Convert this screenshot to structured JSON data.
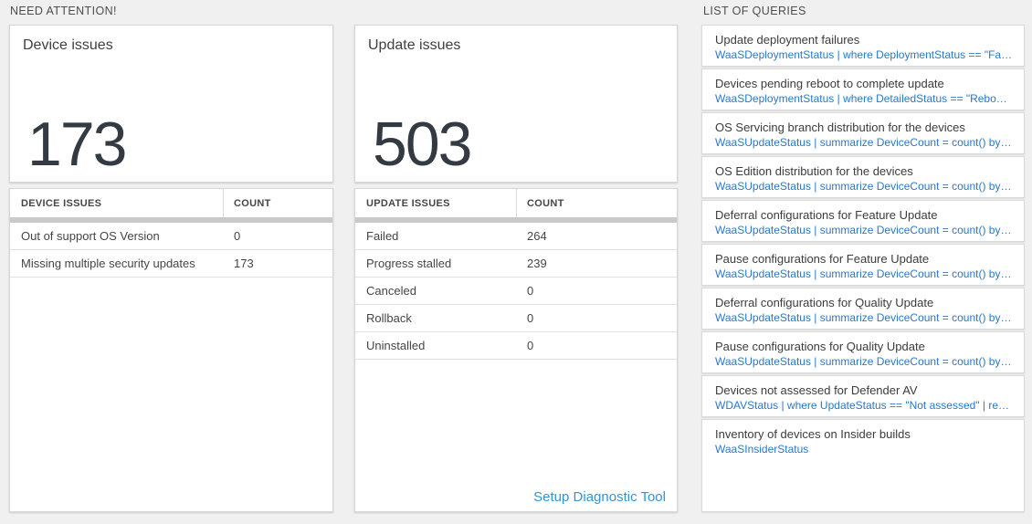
{
  "sections": {
    "need_attention": "NEED ATTENTION!",
    "list_of_queries": "LIST OF QUERIES"
  },
  "device_card": {
    "title": "Device issues",
    "count": "173",
    "table": {
      "headers": {
        "label": "DEVICE ISSUES",
        "count": "COUNT"
      },
      "rows": [
        {
          "label": "Out of support OS Version",
          "count": "0"
        },
        {
          "label": "Missing multiple security updates",
          "count": "173"
        }
      ]
    }
  },
  "update_card": {
    "title": "Update issues",
    "count": "503",
    "table": {
      "headers": {
        "label": "UPDATE ISSUES",
        "count": "COUNT"
      },
      "rows": [
        {
          "label": "Failed",
          "count": "264"
        },
        {
          "label": "Progress stalled",
          "count": "239"
        },
        {
          "label": "Canceled",
          "count": "0"
        },
        {
          "label": "Rollback",
          "count": "0"
        },
        {
          "label": "Uninstalled",
          "count": "0"
        }
      ]
    },
    "footer_link": "Setup Diagnostic Tool"
  },
  "queries": [
    {
      "title": "Update deployment failures",
      "query": "WaaSDeploymentStatus | where DeploymentStatus == \"Failed\" |..."
    },
    {
      "title": "Devices pending reboot to complete update",
      "query": "WaaSDeploymentStatus | where DetailedStatus == \"Reboot pend..."
    },
    {
      "title": "OS Servicing branch distribution for the devices",
      "query": "WaaSUpdateStatus | summarize DeviceCount = count() by OSSer..."
    },
    {
      "title": "OS Edition distribution for the devices",
      "query": "WaaSUpdateStatus | summarize DeviceCount = count() by OSEdit..."
    },
    {
      "title": "Deferral configurations for Feature Update",
      "query": "WaaSUpdateStatus | summarize DeviceCount = count() by Featur..."
    },
    {
      "title": "Pause configurations for Feature Update",
      "query": "WaaSUpdateStatus | summarize DeviceCount = count() by Featur..."
    },
    {
      "title": "Deferral configurations for Quality Update",
      "query": "WaaSUpdateStatus | summarize DeviceCount = count() by Qualit..."
    },
    {
      "title": "Pause configurations for Quality Update",
      "query": "WaaSUpdateStatus | summarize DeviceCount = count() by Qualit..."
    },
    {
      "title": "Devices not assessed for Defender AV",
      "query": "WDAVStatus | where UpdateStatus == \"Not assessed\" | render ta..."
    },
    {
      "title": "Inventory of devices on Insider builds",
      "query": "WaaSInsiderStatus"
    }
  ],
  "colors": {
    "page_background": "#f0f0f0",
    "query_link_blue": "#2b77c9",
    "setup_link_blue": "#3095d6",
    "big_number": "#333a41",
    "thick_bar_gray": "#c9c9c9"
  }
}
